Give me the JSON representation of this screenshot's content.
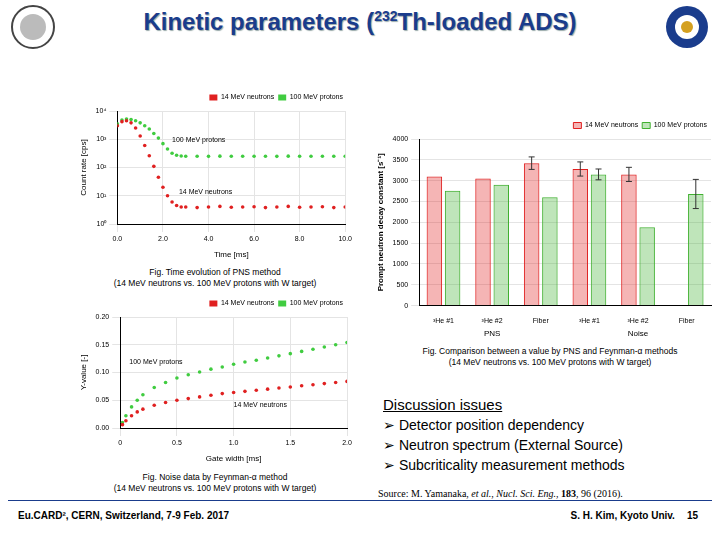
{
  "title": {
    "before": "Kinetic parameters (",
    "sup": "232",
    "after": "Th-loaded ADS)"
  },
  "chart_data": [
    {
      "type": "scatter",
      "caption": [
        "Fig. Time evolution of PNS method",
        "(14 MeV neutrons vs. 100 MeV protons with W target)"
      ],
      "xlabel": "Time [ms]",
      "ylabel": "Count rate [cps]",
      "x": [
        0,
        0.2,
        0.4,
        0.6,
        0.8,
        1.0,
        1.2,
        1.4,
        1.6,
        1.8,
        2.0,
        2.2,
        2.4,
        2.6,
        2.8,
        3.0,
        3.5,
        4.0,
        4.5,
        5.0,
        5.5,
        6.0,
        6.5,
        7.0,
        7.5,
        8.0,
        8.5,
        9.0,
        9.5,
        10.0
      ],
      "series": [
        {
          "name": "14 MeV neutrons",
          "color": "#e02020",
          "marker": "circle",
          "values": [
            3000,
            4200,
            4500,
            3800,
            2500,
            1300,
            600,
            260,
            110,
            45,
            20,
            10,
            6,
            4.5,
            4,
            4,
            3.8,
            4,
            4.2,
            3.9,
            4,
            4.1,
            3.8,
            4,
            4.2,
            3.9,
            4,
            4.1,
            3.8,
            4
          ]
        },
        {
          "name": "100 MeV protons",
          "color": "#40cc40",
          "marker": "circle",
          "values": [
            3500,
            4800,
            5200,
            5000,
            4500,
            3800,
            3000,
            2300,
            1600,
            1100,
            700,
            450,
            320,
            270,
            255,
            250,
            250,
            248,
            252,
            250,
            249,
            251,
            250,
            248,
            252,
            250,
            249,
            251,
            250,
            250
          ]
        }
      ],
      "xlim": [
        0,
        10
      ],
      "xticks": [
        {
          "value": 0,
          "label": "0.0"
        },
        {
          "value": 2,
          "label": "2.0"
        },
        {
          "value": 4,
          "label": "4.0"
        },
        {
          "value": 6,
          "label": "6.0"
        },
        {
          "value": 8,
          "label": "8.0"
        },
        {
          "value": 10,
          "label": "10.0"
        }
      ],
      "ylim": [
        1,
        10000
      ],
      "yticks": [
        {
          "value": 1,
          "label": "10⁰"
        },
        {
          "value": 10,
          "label": "10¹"
        },
        {
          "value": 100,
          "label": "10²"
        },
        {
          "value": 1000,
          "label": "10³"
        },
        {
          "value": 10000,
          "label": "10⁴"
        }
      ],
      "log": "y",
      "grid": true,
      "legend": "top-right",
      "annotations": [
        {
          "text": "100 MeV protons",
          "x": 2.4,
          "y": 900
        },
        {
          "text": "14 MeV neutrons",
          "x": 2.7,
          "y": 14
        }
      ]
    },
    {
      "type": "scatter",
      "caption": [
        "Fig. Noise data by Feynman-α method",
        "(14 MeV neutrons vs. 100 MeV protons with W target)"
      ],
      "xlabel": "Gate width [ms]",
      "ylabel": "Y-value [-]",
      "x": [
        0.02,
        0.05,
        0.1,
        0.15,
        0.2,
        0.3,
        0.4,
        0.5,
        0.6,
        0.7,
        0.8,
        0.9,
        1.0,
        1.1,
        1.2,
        1.3,
        1.4,
        1.5,
        1.6,
        1.7,
        1.8,
        1.9,
        2.0
      ],
      "series": [
        {
          "name": "14 MeV neutrons",
          "color": "#e02020",
          "marker": "circle",
          "values": [
            0.006,
            0.013,
            0.022,
            0.029,
            0.034,
            0.041,
            0.046,
            0.05,
            0.053,
            0.056,
            0.059,
            0.062,
            0.064,
            0.066,
            0.068,
            0.07,
            0.072,
            0.074,
            0.076,
            0.078,
            0.08,
            0.082,
            0.084
          ]
        },
        {
          "name": "100 MeV protons",
          "color": "#40cc40",
          "marker": "circle",
          "values": [
            0.01,
            0.022,
            0.038,
            0.05,
            0.06,
            0.073,
            0.082,
            0.09,
            0.096,
            0.101,
            0.106,
            0.11,
            0.115,
            0.119,
            0.122,
            0.126,
            0.13,
            0.134,
            0.138,
            0.142,
            0.146,
            0.15,
            0.154
          ]
        }
      ],
      "xlim": [
        0,
        2
      ],
      "xticks": [
        0,
        0.5,
        {
          "value": 1,
          "label": "1.0"
        },
        1.5,
        {
          "value": 2,
          "label": "2.0"
        }
      ],
      "ylim": [
        0,
        0.2
      ],
      "yticks": [
        {
          "value": 0,
          "label": "0.00"
        },
        0.05,
        {
          "value": 0.1,
          "label": "0.10"
        },
        0.15,
        {
          "value": 0.2,
          "label": "0.20"
        }
      ],
      "grid": true,
      "legend": "top-right",
      "annotations": [
        {
          "text": "100 MeV protons",
          "x": 0.08,
          "y": 0.118
        },
        {
          "text": "14 MeV neutrons",
          "x": 1.0,
          "y": 0.042
        }
      ]
    },
    {
      "type": "bar",
      "caption": [
        "Fig. Comparison between a value by PNS and Feynman-α methods",
        "(14 MeV neutrons vs. 100 MeV protons with W target)"
      ],
      "ylabel": "Prompt neutron decay constant [s⁻¹]",
      "categories": [
        "³He #1",
        "³He #2",
        "Fiber",
        "³He #1",
        "³He #2",
        "Fiber"
      ],
      "groups": [
        {
          "label": "PNS",
          "count": 3
        },
        {
          "label": "Noise",
          "count": 3
        }
      ],
      "series": [
        {
          "name": "14 MeV neutrons",
          "color": "#e02020",
          "values": [
            3100,
            3050,
            3420,
            3280,
            3150,
            null
          ],
          "errors": [
            null,
            null,
            150,
            170,
            170,
            null
          ]
        },
        {
          "name": "100 MeV protons",
          "color": "#40b030",
          "values": [
            2760,
            2900,
            2600,
            3150,
            1880,
            2680
          ],
          "errors": [
            null,
            null,
            null,
            130,
            null,
            350
          ]
        }
      ],
      "ylim": [
        0,
        4000
      ],
      "yticks": [
        0,
        500,
        1000,
        1500,
        2000,
        2500,
        3000,
        3500,
        4000
      ],
      "grid": true,
      "legend": "top-right"
    }
  ],
  "discussion": {
    "heading": "Discussion issues",
    "items": [
      "Detector position dependency",
      "Neutron spectrum (External Source)",
      "Subcriticality measurement methods"
    ]
  },
  "source": [
    {
      "text": "Source: M. Yamanaka, "
    },
    {
      "text": "et al.",
      "style": "italic"
    },
    {
      "text": ", "
    },
    {
      "text": "Nucl. Sci. Eng.",
      "style": "italic"
    },
    {
      "text": ", "
    },
    {
      "text": "183",
      "style": "bold"
    },
    {
      "text": ", 96 (2016)."
    }
  ],
  "footer": {
    "left": "Eu.CARD², CERN, Switzerland, 7-9 Feb. 2017",
    "right": "S. H. Kim, Kyoto Univ.",
    "page": "15"
  }
}
